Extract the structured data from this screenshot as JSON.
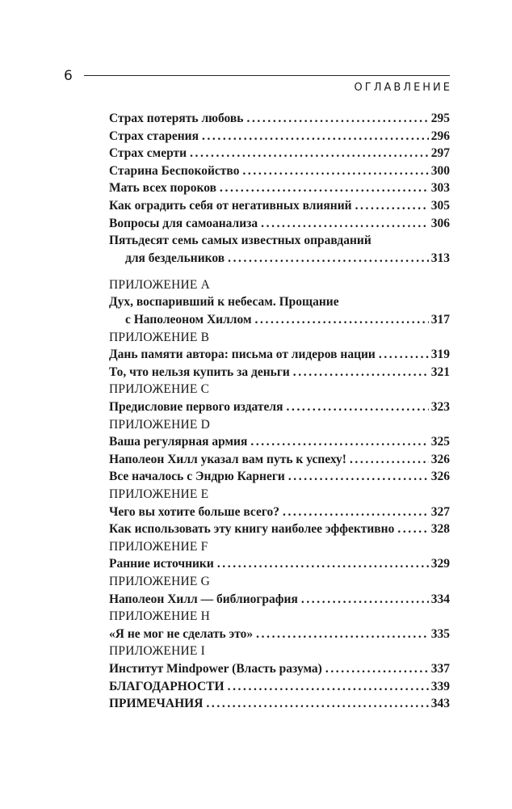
{
  "page_number": "6",
  "running_head": "ОГЛАВЛЕНИЕ",
  "top_entries": [
    {
      "title": [
        "Страх потерять любовь"
      ],
      "page": "295"
    },
    {
      "title": [
        "Страх старения"
      ],
      "page": "296"
    },
    {
      "title": [
        "Страх смерти"
      ],
      "page": "297"
    },
    {
      "title": [
        "Старина Беспокойство"
      ],
      "page": "300"
    },
    {
      "title": [
        "Мать всех пороков"
      ],
      "page": "303"
    },
    {
      "title": [
        "Как оградить себя от негативных влияний"
      ],
      "page": "305"
    },
    {
      "title": [
        "Вопросы для самоанализа"
      ],
      "page": "306"
    },
    {
      "title": [
        "Пятьдесят семь самых известных оправданий",
        "для бездельников"
      ],
      "page": "313"
    }
  ],
  "sections": [
    {
      "heading": "ПРИЛОЖЕНИЕ A",
      "entries": [
        {
          "title": [
            "Дух, воспаривший к небесам. Прощание",
            "с Наполеоном Хиллом"
          ],
          "page": "317"
        }
      ]
    },
    {
      "heading": "ПРИЛОЖЕНИЕ B",
      "entries": [
        {
          "title": [
            "Дань памяти автора: письма от лидеров нации"
          ],
          "page": "319"
        },
        {
          "title": [
            "То, что нельзя купить за деньги"
          ],
          "page": "321"
        }
      ]
    },
    {
      "heading": "ПРИЛОЖЕНИЕ C",
      "entries": [
        {
          "title": [
            "Предисловие первого издателя"
          ],
          "page": "323"
        }
      ]
    },
    {
      "heading": "ПРИЛОЖЕНИЕ D",
      "entries": [
        {
          "title": [
            "Ваша регулярная армия"
          ],
          "page": "325"
        },
        {
          "title": [
            "Наполеон Хилл указал вам путь к успеху!"
          ],
          "page": "326"
        },
        {
          "title": [
            "Все началось с Эндрю Карнеги"
          ],
          "page": "326"
        }
      ]
    },
    {
      "heading": "ПРИЛОЖЕНИЕ E",
      "entries": [
        {
          "title": [
            "Чего вы хотите больше всего?"
          ],
          "page": "327"
        },
        {
          "title": [
            "Как использовать эту книгу наиболее эффективно"
          ],
          "page": "328"
        }
      ]
    },
    {
      "heading": "ПРИЛОЖЕНИЕ F",
      "entries": [
        {
          "title": [
            "Ранние источники"
          ],
          "page": "329"
        }
      ]
    },
    {
      "heading": "ПРИЛОЖЕНИЕ G",
      "entries": [
        {
          "title": [
            "Наполеон Хилл — библиография"
          ],
          "page": "334"
        }
      ]
    },
    {
      "heading": "ПРИЛОЖЕНИЕ H",
      "entries": [
        {
          "title": [
            "«Я не мог не сделать это»"
          ],
          "page": "335"
        }
      ]
    },
    {
      "heading": "ПРИЛОЖЕНИЕ I",
      "entries": [
        {
          "title": [
            "Институт Mindpower (Власть разума)"
          ],
          "page": "337"
        }
      ]
    }
  ],
  "tail_entries": [
    {
      "title": [
        "БЛАГОДАРНОСТИ"
      ],
      "page": "339"
    },
    {
      "title": [
        "ПРИМЕЧАНИЯ"
      ],
      "page": "343"
    }
  ]
}
